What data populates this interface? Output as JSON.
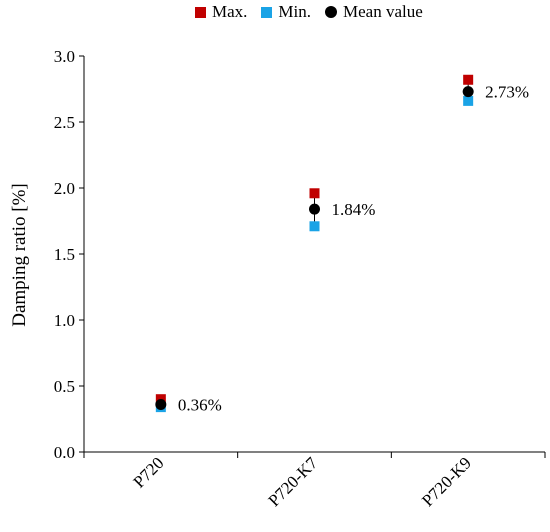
{
  "chart_data": {
    "type": "scatter",
    "categories": [
      "P720",
      "P720-K7",
      "P720-K9"
    ],
    "series": [
      {
        "name": "Max.",
        "color": "#c00000",
        "marker": "square",
        "values": [
          0.4,
          1.96,
          2.82
        ]
      },
      {
        "name": "Min.",
        "color": "#1aa3e6",
        "marker": "square",
        "values": [
          0.34,
          1.71,
          2.66
        ]
      },
      {
        "name": "Mean value",
        "color": "#000000",
        "marker": "circle",
        "values": [
          0.36,
          1.84,
          2.73
        ]
      }
    ],
    "annotations": [
      "0.36%",
      "1.84%",
      "2.73%"
    ],
    "ylabel": "Damping ratio [%]",
    "ylim": [
      0,
      3.0
    ],
    "yticks": [
      "0.0",
      "0.5",
      "1.0",
      "1.5",
      "2.0",
      "2.5",
      "3.0"
    ],
    "grid": false,
    "legend_position": "top"
  }
}
